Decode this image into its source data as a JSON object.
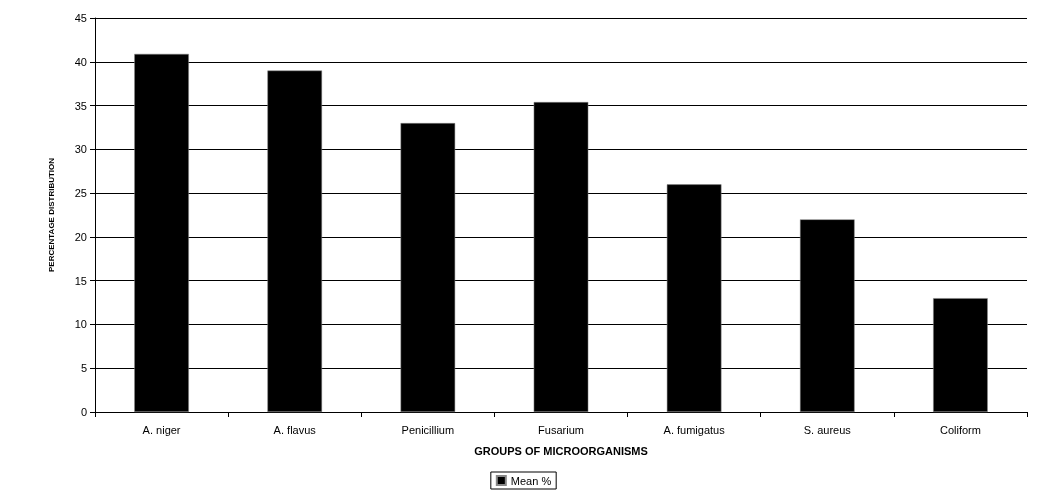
{
  "chart_data": {
    "type": "bar",
    "categories": [
      "A. niger",
      "A. flavus",
      "Penicillium",
      "Fusarium",
      "A. fumigatus",
      "S. aureus",
      "Coliform"
    ],
    "series": [
      {
        "name": "Mean %",
        "color": "#000000",
        "values": [
          40.9,
          39,
          33,
          35.4,
          26,
          22,
          13
        ]
      }
    ],
    "xlabel": "GROUPS OF MICROORGANISMS",
    "ylabel": "PERCENTAGE DISTRIBUTION",
    "ylim": [
      0,
      45
    ],
    "yticks": [
      0,
      5,
      10,
      15,
      20,
      25,
      30,
      35,
      40,
      45
    ],
    "grid": "y",
    "legend": "bottom"
  }
}
